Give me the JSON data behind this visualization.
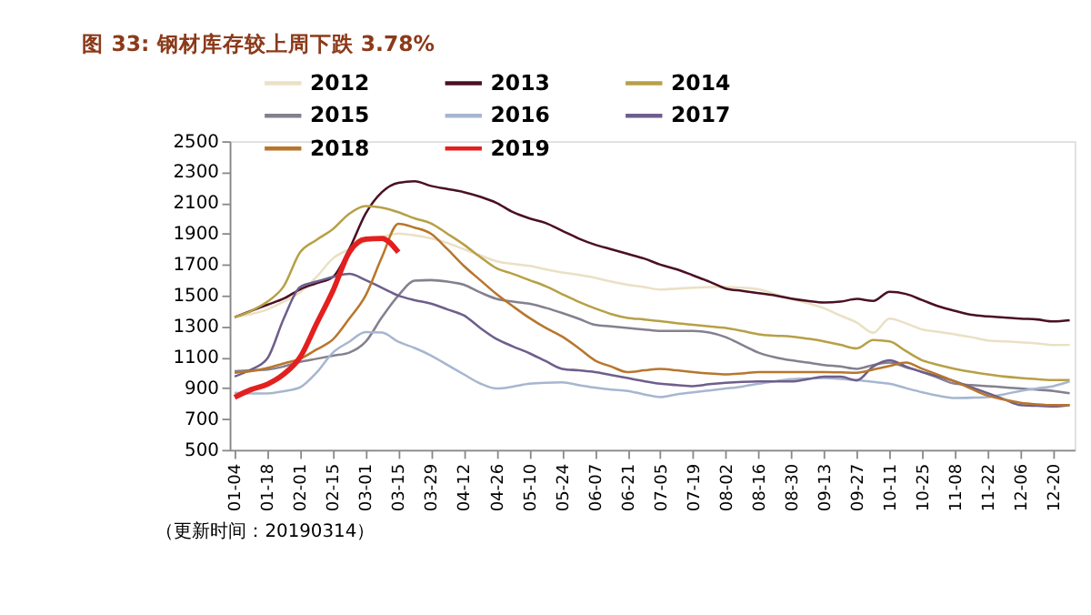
{
  "chart_data": {
    "type": "line",
    "title": "图 33: 钢材库存较上周下跌 3.78%",
    "categories": [
      "01-04",
      null,
      "01-18",
      null,
      "02-01",
      null,
      "02-15",
      null,
      "03-01",
      null,
      "03-15",
      null,
      "03-29",
      null,
      "04-12",
      null,
      "04-26",
      null,
      "05-10",
      null,
      "05-24",
      null,
      "06-07",
      null,
      "06-21",
      null,
      "07-05",
      null,
      "07-19",
      null,
      "08-02",
      null,
      "08-16",
      null,
      "08-30",
      null,
      "09-13",
      null,
      "09-27",
      null,
      "10-11",
      null,
      "10-25",
      null,
      "11-08",
      null,
      "11-22",
      null,
      "12-06",
      null,
      "12-20",
      null
    ],
    "series": [
      {
        "name": "2012",
        "color": "#ebe0c4",
        "values": [
          1360,
          1380,
          1410,
          1460,
          1520,
          1620,
          1740,
          1800,
          1850,
          1880,
          1902,
          1890,
          1870,
          1840,
          1800,
          1760,
          1722,
          1705,
          1692,
          1670,
          1650,
          1635,
          1616,
          1590,
          1570,
          1555,
          1539,
          1545,
          1550,
          1555,
          1555,
          1550,
          1540,
          1510,
          1478,
          1450,
          1417,
          1370,
          1325,
          1258,
          1350,
          1320,
          1280,
          1265,
          1249,
          1230,
          1209,
          1203,
          1197,
          1190,
          1179,
          1180
        ]
      },
      {
        "name": "2013",
        "color": "#4a1022",
        "values": [
          1360,
          1400,
          1440,
          1480,
          1540,
          1580,
          1620,
          1800,
          2030,
          2170,
          2230,
          2240,
          2210,
          2190,
          2170,
          2140,
          2100,
          2040,
          2000,
          1970,
          1920,
          1870,
          1830,
          1800,
          1770,
          1740,
          1700,
          1670,
          1630,
          1590,
          1545,
          1530,
          1515,
          1500,
          1480,
          1465,
          1455,
          1460,
          1478,
          1465,
          1524,
          1510,
          1470,
          1430,
          1400,
          1375,
          1365,
          1358,
          1350,
          1345,
          1332,
          1340
        ]
      },
      {
        "name": "2014",
        "color": "#b7a046",
        "values": [
          1360,
          1400,
          1460,
          1560,
          1780,
          1860,
          1930,
          2030,
          2080,
          2070,
          2040,
          2000,
          1967,
          1900,
          1830,
          1750,
          1676,
          1640,
          1600,
          1560,
          1509,
          1460,
          1417,
          1380,
          1355,
          1345,
          1334,
          1320,
          1310,
          1300,
          1289,
          1270,
          1249,
          1240,
          1234,
          1220,
          1203,
          1180,
          1157,
          1212,
          1203,
          1140,
          1080,
          1050,
          1025,
          1005,
          989,
          975,
          965,
          958,
          952,
          952
        ]
      },
      {
        "name": "2015",
        "color": "#85808f",
        "values": [
          1010,
          1015,
          1020,
          1040,
          1070,
          1090,
          1110,
          1130,
          1200,
          1360,
          1500,
          1596,
          1600,
          1590,
          1570,
          1520,
          1478,
          1460,
          1447,
          1420,
          1387,
          1350,
          1310,
          1300,
          1289,
          1280,
          1270,
          1270,
          1270,
          1260,
          1230,
          1180,
          1130,
          1100,
          1080,
          1065,
          1050,
          1040,
          1025,
          1050,
          1066,
          1035,
          1004,
          965,
          928,
          920,
          913,
          905,
          897,
          890,
          882,
          867
        ]
      },
      {
        "name": "2016",
        "color": "#a7b6d0",
        "values": [
          870,
          865,
          865,
          880,
          905,
          1000,
          1130,
          1200,
          1263,
          1260,
          1200,
          1160,
          1111,
          1050,
          989,
          930,
          897,
          910,
          928,
          935,
          937,
          920,
          903,
          890,
          882,
          860,
          842,
          860,
          873,
          885,
          897,
          910,
          928,
          945,
          958,
          962,
          965,
          960,
          952,
          940,
          928,
          900,
          873,
          850,
          836,
          838,
          842,
          860,
          882,
          898,
          913,
          943
        ]
      },
      {
        "name": "2017",
        "color": "#6e5e8c",
        "values": [
          975,
          1020,
          1092,
          1350,
          1555,
          1590,
          1620,
          1640,
          1600,
          1550,
          1500,
          1470,
          1447,
          1410,
          1371,
          1290,
          1218,
          1170,
          1126,
          1075,
          1025,
          1015,
          1004,
          985,
          965,
          945,
          928,
          920,
          913,
          925,
          934,
          940,
          943,
          943,
          943,
          958,
          974,
          974,
          950,
          1040,
          1080,
          1040,
          1004,
          975,
          943,
          905,
          867,
          828,
          790,
          785,
          781,
          790
        ]
      },
      {
        "name": "2018",
        "color": "#b8762c",
        "values": [
          1000,
          1010,
          1030,
          1060,
          1090,
          1150,
          1215,
          1350,
          1500,
          1750,
          1965,
          1940,
          1900,
          1800,
          1692,
          1600,
          1509,
          1430,
          1355,
          1290,
          1234,
          1160,
          1080,
          1040,
          1004,
          1015,
          1025,
          1015,
          1004,
          995,
          989,
          995,
          1004,
          1004,
          1004,
          1004,
          1004,
          1002,
          1000,
          1020,
          1044,
          1066,
          1025,
          985,
          943,
          895,
          851,
          825,
          805,
          795,
          790,
          790
        ]
      },
      {
        "name": "2019",
        "color": "#e3201f",
        "values": [
          840,
          890,
          925,
          990,
          1100,
          1316,
          1530,
          1780,
          1865,
          1870,
          1780,
          null,
          null,
          null,
          null,
          null,
          null,
          null,
          null,
          null,
          null,
          null,
          null,
          null,
          null,
          null,
          null,
          null,
          null,
          null,
          null,
          null,
          null,
          null,
          null,
          null,
          null,
          null,
          null,
          null,
          null,
          null,
          null,
          null,
          null,
          null,
          null,
          null,
          null,
          null,
          null,
          null
        ]
      }
    ],
    "ylim": [
      500,
      2500
    ],
    "yticks": [
      500,
      700,
      900,
      {
        "value": 1100,
        "label": "1100"
      },
      {
        "value": 1300,
        "label": "1300"
      },
      {
        "value": 1500,
        "label": "1500"
      },
      {
        "value": 1700,
        "label": "1700"
      },
      {
        "value": 1900,
        "label": "1900"
      },
      {
        "value": 2100,
        "label": "2100"
      },
      {
        "value": 2300,
        "label": "2300"
      },
      {
        "value": 2500,
        "label": "2500"
      }
    ],
    "grid": false,
    "legend": "top",
    "marker": "none",
    "line_style": "solid",
    "annotations": [
      "（更新时间：20190314）"
    ]
  }
}
